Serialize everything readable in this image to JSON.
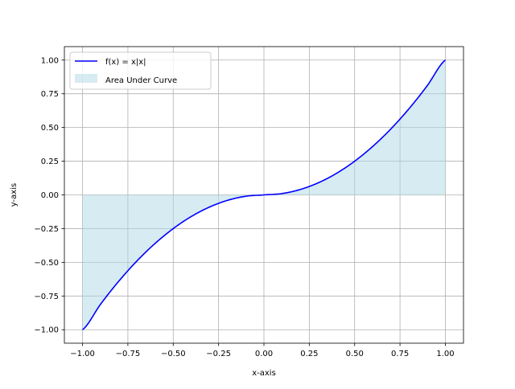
{
  "chart_data": {
    "type": "line",
    "title": "",
    "xlabel": "x-axis",
    "ylabel": "y-axis",
    "xlim": [
      -1.1,
      1.1
    ],
    "ylim": [
      -1.1,
      1.1
    ],
    "grid": true,
    "legend_position": "top-left",
    "x_ticks": [
      -1.0,
      -0.75,
      -0.5,
      -0.25,
      0.0,
      0.25,
      0.5,
      0.75,
      1.0
    ],
    "y_ticks": [
      -1.0,
      -0.75,
      -0.5,
      -0.25,
      0.0,
      0.25,
      0.5,
      0.75,
      1.0
    ],
    "x_tick_labels": [
      "−1.00",
      "−0.75",
      "−0.50",
      "−0.25",
      "0.00",
      "0.25",
      "0.50",
      "0.75",
      "1.00"
    ],
    "y_tick_labels": [
      "−1.00",
      "−0.75",
      "−0.50",
      "−0.25",
      "0.00",
      "0.25",
      "0.50",
      "0.75",
      "1.00"
    ],
    "series": [
      {
        "name": "f(x) = x|x|",
        "kind": "line",
        "color": "#0000ff",
        "x": [
          -1.0,
          -0.9,
          -0.8,
          -0.7,
          -0.6,
          -0.5,
          -0.4,
          -0.3,
          -0.2,
          -0.1,
          0.0,
          0.1,
          0.2,
          0.3,
          0.4,
          0.5,
          0.6,
          0.7,
          0.8,
          0.9,
          1.0
        ],
        "y": [
          -1.0,
          -0.81,
          -0.64,
          -0.49,
          -0.36,
          -0.25,
          -0.16,
          -0.09,
          -0.04,
          -0.01,
          0.0,
          0.01,
          0.04,
          0.09,
          0.16,
          0.25,
          0.36,
          0.49,
          0.64,
          0.81,
          1.0
        ]
      },
      {
        "name": "Area Under Curve",
        "kind": "area",
        "color": "#add8e6",
        "x": [
          -1.0,
          -0.9,
          -0.8,
          -0.7,
          -0.6,
          -0.5,
          -0.4,
          -0.3,
          -0.2,
          -0.1,
          0.0,
          0.1,
          0.2,
          0.3,
          0.4,
          0.5,
          0.6,
          0.7,
          0.8,
          0.9,
          1.0
        ],
        "y": [
          -1.0,
          -0.81,
          -0.64,
          -0.49,
          -0.36,
          -0.25,
          -0.16,
          -0.09,
          -0.04,
          -0.01,
          0.0,
          0.01,
          0.04,
          0.09,
          0.16,
          0.25,
          0.36,
          0.49,
          0.64,
          0.81,
          1.0
        ]
      }
    ]
  }
}
